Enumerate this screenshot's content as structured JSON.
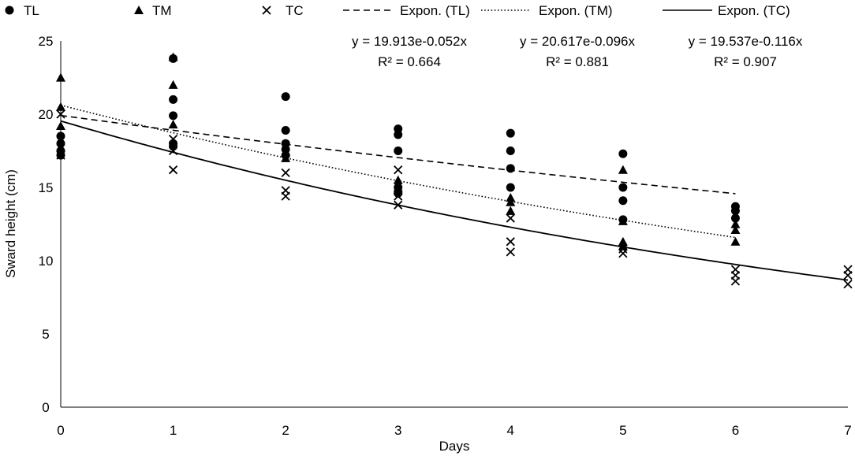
{
  "chart_data": {
    "type": "scatter",
    "title": "",
    "xlabel": "Days",
    "ylabel": "Sward height (cm)",
    "xlim": [
      0,
      7
    ],
    "ylim": [
      0,
      25
    ],
    "x_ticks": [
      "0",
      "1",
      "2",
      "3",
      "4",
      "5",
      "6",
      "7"
    ],
    "y_ticks": [
      "0",
      "5",
      "10",
      "15",
      "20",
      "25"
    ],
    "grid": false,
    "legend_position": "top",
    "series": [
      {
        "name": "TL",
        "marker": "circle",
        "points": [
          [
            0,
            18.5
          ],
          [
            0,
            18.0
          ],
          [
            0,
            17.5
          ],
          [
            0,
            17.2
          ],
          [
            1,
            23.8
          ],
          [
            1,
            21.0
          ],
          [
            1,
            19.9
          ],
          [
            1,
            18.0
          ],
          [
            1,
            17.8
          ],
          [
            2,
            21.2
          ],
          [
            2,
            18.9
          ],
          [
            2,
            18.0
          ],
          [
            2,
            17.6
          ],
          [
            2,
            17.2
          ],
          [
            3,
            19.0
          ],
          [
            3,
            18.6
          ],
          [
            3,
            17.5
          ],
          [
            3,
            15.0
          ],
          [
            3,
            14.6
          ],
          [
            4,
            18.7
          ],
          [
            4,
            17.5
          ],
          [
            4,
            16.3
          ],
          [
            4,
            15.0
          ],
          [
            5,
            17.3
          ],
          [
            5,
            15.0
          ],
          [
            5,
            14.1
          ],
          [
            5,
            12.8
          ],
          [
            6,
            13.7
          ],
          [
            6,
            13.4
          ],
          [
            6,
            12.9
          ]
        ]
      },
      {
        "name": "TM",
        "marker": "triangle",
        "points": [
          [
            0,
            22.5
          ],
          [
            0,
            20.5
          ],
          [
            0,
            19.2
          ],
          [
            1,
            23.9
          ],
          [
            1,
            22.0
          ],
          [
            1,
            19.3
          ],
          [
            2,
            17.4
          ],
          [
            2,
            17.0
          ],
          [
            3,
            15.5
          ],
          [
            3,
            15.0
          ],
          [
            3,
            14.8
          ],
          [
            4,
            14.3
          ],
          [
            4,
            14.0
          ],
          [
            4,
            13.4
          ],
          [
            5,
            16.2
          ],
          [
            5,
            12.7
          ],
          [
            5,
            11.3
          ],
          [
            5,
            11.0
          ],
          [
            6,
            12.5
          ],
          [
            6,
            12.1
          ],
          [
            6,
            11.3
          ]
        ]
      },
      {
        "name": "TC",
        "marker": "x",
        "points": [
          [
            0,
            20.0
          ],
          [
            0,
            17.2
          ],
          [
            1,
            18.3
          ],
          [
            1,
            17.5
          ],
          [
            1,
            16.2
          ],
          [
            2,
            16.0
          ],
          [
            2,
            14.8
          ],
          [
            2,
            14.4
          ],
          [
            3,
            16.2
          ],
          [
            3,
            14.4
          ],
          [
            3,
            13.8
          ],
          [
            4,
            12.9
          ],
          [
            4,
            11.3
          ],
          [
            4,
            10.6
          ],
          [
            5,
            10.8
          ],
          [
            5,
            10.5
          ],
          [
            6,
            9.4
          ],
          [
            6,
            9.0
          ],
          [
            6,
            8.6
          ],
          [
            7,
            9.4
          ],
          [
            7,
            9.0
          ],
          [
            7,
            8.4
          ]
        ]
      }
    ],
    "trendlines": [
      {
        "name": "Expon. (TL)",
        "style": "dashed",
        "a": 19.913,
        "b": -0.052,
        "x_range": [
          0,
          6
        ],
        "equation": "y = 19.913e-0.052x",
        "r2": "R² = 0.664"
      },
      {
        "name": "Expon. (TM)",
        "style": "dotted",
        "a": 20.617,
        "b": -0.096,
        "x_range": [
          0,
          6
        ],
        "equation": "y = 20.617e-0.096x",
        "r2": "R² = 0.881"
      },
      {
        "name": "Expon. (TC)",
        "style": "solid",
        "a": 19.537,
        "b": -0.116,
        "x_range": [
          0,
          7
        ],
        "equation": "y = 19.537e-0.116x",
        "r2": "R² = 0.907"
      }
    ]
  }
}
